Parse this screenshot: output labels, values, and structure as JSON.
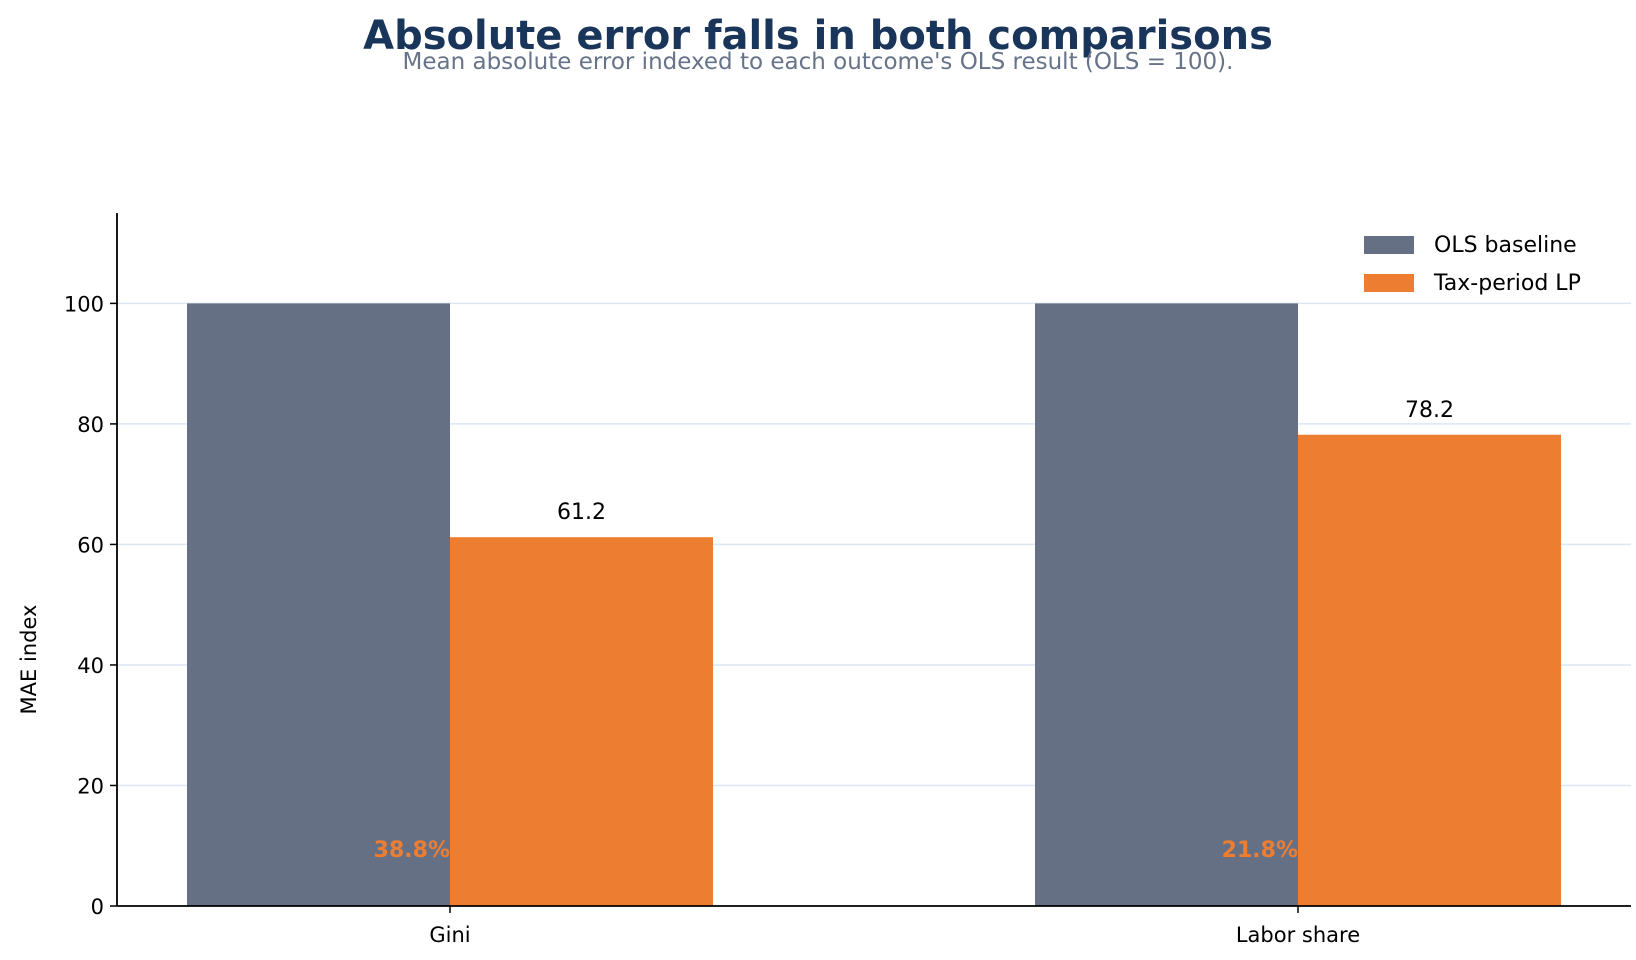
{
  "chart_data": {
    "type": "bar",
    "title": "Absolute error falls in both comparisons",
    "subtitle": "Mean absolute error indexed to each outcome's OLS result (OLS = 100).",
    "xlabel": "",
    "ylabel": "MAE index",
    "categories": [
      "Gini",
      "Labor share"
    ],
    "series": [
      {
        "name": "OLS baseline",
        "values": [
          100,
          100
        ],
        "color": "#667085"
      },
      {
        "name": "Tax-period LP",
        "values": [
          61.2,
          78.2
        ],
        "color": "#ed7d31"
      }
    ],
    "value_labels": [
      "61.2",
      "78.2"
    ],
    "annotations": [
      "38.8%",
      "21.8%"
    ],
    "annotation_color": "#ed7d31",
    "ylim": [
      0,
      115
    ],
    "yticks": [
      0,
      20,
      40,
      60,
      80,
      100
    ],
    "grid": "horizontal",
    "grid_color": "#dde6f2",
    "legend_position": "top-right"
  }
}
